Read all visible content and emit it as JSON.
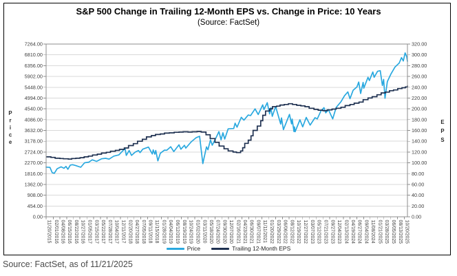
{
  "header": {
    "title": "S&P 500 Change in Trailing 12-Month EPS vs. Change in Price: 10 Years",
    "subtitle": "(Source: FactSet)"
  },
  "footer": {
    "source_caption": "Source: FactSet, as of 11/21/2025"
  },
  "colors": {
    "price_line": "#29A8DF",
    "eps_line": "#1E3050",
    "gridline": "#D9D9D9",
    "frame": "#8C8C8C",
    "tick_text": "#404040",
    "axis_title_text": "#262626"
  },
  "chart_data": {
    "type": "line",
    "title": "S&P 500 Change in Trailing 12-Month EPS vs. Change in Price: 10 Years",
    "subtitle": "(Source: FactSet)",
    "grid": "horizontal",
    "legend_position": "bottom",
    "y_left": {
      "label": "Price",
      "min": 0,
      "max": 7264,
      "ticks": [
        "7264.00",
        "6810.00",
        "6356.00",
        "5902.00",
        "5448.00",
        "4994.00",
        "4540.00",
        "4086.00",
        "3632.00",
        "3178.00",
        "2724.00",
        "2270.00",
        "1816.00",
        "1362.00",
        "908.00",
        "454.00",
        "0.00"
      ]
    },
    "y_right": {
      "label": "EPS",
      "min": 0,
      "max": 320,
      "ticks": [
        "320.00",
        "300.00",
        "280.00",
        "260.00",
        "240.00",
        "220.00",
        "200.00",
        "180.00",
        "160.00",
        "140.00",
        "120.00",
        "100.00",
        "80.00",
        "60.00",
        "40.00",
        "20.00",
        "0.00"
      ]
    },
    "x_ticks": [
      "11/20/2015",
      "02/01/2016",
      "04/08/2016",
      "06/15/2016",
      "08/22/2016",
      "10/27/2016",
      "01/05/2017",
      "03/15/2017",
      "05/22/2017",
      "07/28/2017",
      "10/04/2017",
      "12/11/2017",
      "02/20/2018",
      "04/27/2018",
      "07/05/2018",
      "09/11/2018",
      "11/15/2018",
      "01/28/2019",
      "04/04/2019",
      "06/12/2019",
      "08/19/2019",
      "10/24/2019",
      "01/02/2020",
      "03/11/2020",
      "05/18/2020",
      "07/24/2020",
      "09/30/2020",
      "12/07/2020",
      "02/16/2021",
      "04/23/2021",
      "06/30/2021",
      "09/07/2021",
      "11/11/2021",
      "01/20/2022",
      "03/29/2022",
      "06/06/2022",
      "08/12/2022",
      "10/19/2022",
      "12/27/2022",
      "03/07/2023",
      "05/12/2023",
      "07/21/2023",
      "09/27/2023",
      "12/04/2023",
      "02/13/2024",
      "04/19/2024",
      "06/27/2024",
      "09/04/2024",
      "11/08/2024",
      "01/21/2025",
      "03/28/2025",
      "06/05/2025",
      "08/13/2025",
      "10/20/2025"
    ],
    "series": [
      {
        "name": "Price",
        "axis": "left",
        "style": "line",
        "color": "#29A8DF",
        "points": [
          [
            "2015-11-20",
            2089
          ],
          [
            "2015-12-29",
            2078
          ],
          [
            "2016-01-20",
            1859
          ],
          [
            "2016-02-11",
            1829
          ],
          [
            "2016-03-11",
            2022
          ],
          [
            "2016-04-20",
            2102
          ],
          [
            "2016-05-19",
            2040
          ],
          [
            "2016-06-08",
            2119
          ],
          [
            "2016-06-27",
            2001
          ],
          [
            "2016-07-22",
            2175
          ],
          [
            "2016-08-15",
            2190
          ],
          [
            "2016-09-12",
            2159
          ],
          [
            "2016-11-04",
            2085
          ],
          [
            "2016-12-13",
            2271
          ],
          [
            "2017-01-25",
            2298
          ],
          [
            "2017-03-01",
            2396
          ],
          [
            "2017-04-13",
            2329
          ],
          [
            "2017-06-02",
            2439
          ],
          [
            "2017-07-14",
            2459
          ],
          [
            "2017-08-18",
            2426
          ],
          [
            "2017-10-05",
            2552
          ],
          [
            "2017-11-24",
            2602
          ],
          [
            "2018-01-26",
            2873
          ],
          [
            "2018-02-08",
            2581
          ],
          [
            "2018-03-09",
            2787
          ],
          [
            "2018-04-02",
            2582
          ],
          [
            "2018-05-10",
            2723
          ],
          [
            "2018-06-12",
            2786
          ],
          [
            "2018-06-27",
            2700
          ],
          [
            "2018-07-25",
            2846
          ],
          [
            "2018-09-20",
            2931
          ],
          [
            "2018-10-29",
            2641
          ],
          [
            "2018-11-07",
            2814
          ],
          [
            "2018-11-23",
            2633
          ],
          [
            "2018-12-03",
            2790
          ],
          [
            "2018-12-24",
            2351
          ],
          [
            "2019-01-18",
            2671
          ],
          [
            "2019-03-01",
            2804
          ],
          [
            "2019-03-25",
            2798
          ],
          [
            "2019-05-03",
            2946
          ],
          [
            "2019-06-03",
            2744
          ],
          [
            "2019-07-26",
            3026
          ],
          [
            "2019-08-14",
            2841
          ],
          [
            "2019-09-19",
            3007
          ],
          [
            "2019-10-02",
            2888
          ],
          [
            "2019-11-27",
            3154
          ],
          [
            "2020-01-17",
            3330
          ],
          [
            "2020-02-19",
            3386
          ],
          [
            "2020-03-23",
            2237
          ],
          [
            "2020-04-29",
            2940
          ],
          [
            "2020-05-13",
            2820
          ],
          [
            "2020-06-08",
            3232
          ],
          [
            "2020-06-26",
            3009
          ],
          [
            "2020-08-06",
            3349
          ],
          [
            "2020-09-02",
            3581
          ],
          [
            "2020-09-23",
            3237
          ],
          [
            "2020-10-12",
            3534
          ],
          [
            "2020-10-30",
            3270
          ],
          [
            "2020-12-04",
            3699
          ],
          [
            "2021-01-29",
            3714
          ],
          [
            "2021-02-12",
            3935
          ],
          [
            "2021-03-04",
            3768
          ],
          [
            "2021-04-16",
            4185
          ],
          [
            "2021-05-12",
            4063
          ],
          [
            "2021-06-25",
            4281
          ],
          [
            "2021-07-19",
            4258
          ],
          [
            "2021-09-02",
            4537
          ],
          [
            "2021-10-04",
            4300
          ],
          [
            "2021-11-18",
            4705
          ],
          [
            "2021-12-01",
            4513
          ],
          [
            "2022-01-03",
            4797
          ],
          [
            "2022-01-27",
            4327
          ],
          [
            "2022-02-09",
            4587
          ],
          [
            "2022-02-23",
            4225
          ],
          [
            "2022-03-29",
            4632
          ],
          [
            "2022-05-19",
            3901
          ],
          [
            "2022-05-27",
            4158
          ],
          [
            "2022-06-16",
            3667
          ],
          [
            "2022-08-16",
            4305
          ],
          [
            "2022-09-06",
            3908
          ],
          [
            "2022-09-12",
            4110
          ],
          [
            "2022-09-30",
            3586
          ],
          [
            "2022-10-05",
            3783
          ],
          [
            "2022-10-12",
            3577
          ],
          [
            "2022-11-30",
            4080
          ],
          [
            "2022-12-28",
            3783
          ],
          [
            "2023-02-02",
            4180
          ],
          [
            "2023-03-13",
            3856
          ],
          [
            "2023-05-01",
            4168
          ],
          [
            "2023-05-24",
            4115
          ],
          [
            "2023-06-30",
            4450
          ],
          [
            "2023-07-31",
            4589
          ],
          [
            "2023-08-18",
            4370
          ],
          [
            "2023-09-14",
            4505
          ],
          [
            "2023-10-27",
            4117
          ],
          [
            "2023-12-01",
            4595
          ],
          [
            "2024-01-19",
            4840
          ],
          [
            "2024-02-23",
            5089
          ],
          [
            "2024-03-28",
            5254
          ],
          [
            "2024-04-19",
            4967
          ],
          [
            "2024-05-21",
            5321
          ],
          [
            "2024-06-28",
            5460
          ],
          [
            "2024-07-16",
            5667
          ],
          [
            "2024-08-05",
            5186
          ],
          [
            "2024-08-30",
            5648
          ],
          [
            "2024-09-06",
            5408
          ],
          [
            "2024-10-18",
            5865
          ],
          [
            "2024-11-01",
            5729
          ],
          [
            "2024-12-06",
            6090
          ],
          [
            "2024-12-19",
            5867
          ],
          [
            "2025-01-23",
            6118
          ],
          [
            "2025-02-19",
            6144
          ],
          [
            "2025-03-13",
            5521
          ],
          [
            "2025-03-25",
            5777
          ],
          [
            "2025-04-08",
            4983
          ],
          [
            "2025-05-02",
            5687
          ],
          [
            "2025-06-06",
            6000
          ],
          [
            "2025-07-18",
            6297
          ],
          [
            "2025-08-29",
            6460
          ],
          [
            "2025-09-22",
            6694
          ],
          [
            "2025-10-10",
            6553
          ],
          [
            "2025-10-28",
            6891
          ],
          [
            "2025-11-13",
            6737
          ],
          [
            "2025-11-21",
            6538
          ]
        ]
      },
      {
        "name": "Trailing 12-Month EPS",
        "axis": "right",
        "style": "step",
        "color": "#1E3050",
        "points": [
          [
            "2015-11-20",
            111
          ],
          [
            "2016-01-08",
            110
          ],
          [
            "2016-02-19",
            108.5
          ],
          [
            "2016-04-08",
            108
          ],
          [
            "2016-05-13",
            107.5
          ],
          [
            "2016-07-01",
            107
          ],
          [
            "2016-08-05",
            108
          ],
          [
            "2016-09-16",
            108.5
          ],
          [
            "2016-10-28",
            109.5
          ],
          [
            "2016-12-09",
            111
          ],
          [
            "2017-01-20",
            112.5
          ],
          [
            "2017-03-03",
            114.5
          ],
          [
            "2017-04-21",
            116
          ],
          [
            "2017-06-02",
            118
          ],
          [
            "2017-07-21",
            119.5
          ],
          [
            "2017-09-01",
            121.5
          ],
          [
            "2017-10-20",
            123
          ],
          [
            "2017-12-01",
            125
          ],
          [
            "2018-01-19",
            127.5
          ],
          [
            "2018-03-02",
            132
          ],
          [
            "2018-04-20",
            135.5
          ],
          [
            "2018-06-01",
            140
          ],
          [
            "2018-07-20",
            143.5
          ],
          [
            "2018-08-31",
            148
          ],
          [
            "2018-10-19",
            150.5
          ],
          [
            "2018-11-30",
            152.5
          ],
          [
            "2019-01-18",
            153.5
          ],
          [
            "2019-03-01",
            155
          ],
          [
            "2019-04-19",
            155.5
          ],
          [
            "2019-06-07",
            156.5
          ],
          [
            "2019-07-26",
            157
          ],
          [
            "2019-09-06",
            157.5
          ],
          [
            "2019-10-25",
            157
          ],
          [
            "2019-12-06",
            157.5
          ],
          [
            "2020-01-24",
            158
          ],
          [
            "2020-03-06",
            157
          ],
          [
            "2020-04-24",
            152
          ],
          [
            "2020-06-05",
            145
          ],
          [
            "2020-07-24",
            138
          ],
          [
            "2020-09-04",
            131
          ],
          [
            "2020-10-23",
            126
          ],
          [
            "2020-12-04",
            122
          ],
          [
            "2021-01-22",
            120
          ],
          [
            "2021-02-26",
            119
          ],
          [
            "2021-04-09",
            122
          ],
          [
            "2021-04-30",
            128
          ],
          [
            "2021-05-21",
            136
          ],
          [
            "2021-06-25",
            142
          ],
          [
            "2021-07-23",
            150
          ],
          [
            "2021-08-13",
            160
          ],
          [
            "2021-09-24",
            168
          ],
          [
            "2021-10-29",
            178
          ],
          [
            "2021-11-19",
            188
          ],
          [
            "2021-12-17",
            196
          ],
          [
            "2022-01-28",
            200
          ],
          [
            "2022-02-25",
            204
          ],
          [
            "2022-04-08",
            205
          ],
          [
            "2022-05-13",
            207
          ],
          [
            "2022-06-24",
            208
          ],
          [
            "2022-08-05",
            209.5
          ],
          [
            "2022-09-16",
            208
          ],
          [
            "2022-10-28",
            206.5
          ],
          [
            "2022-12-09",
            205.5
          ],
          [
            "2023-01-20",
            204
          ],
          [
            "2023-03-03",
            201
          ],
          [
            "2023-04-21",
            199
          ],
          [
            "2023-06-02",
            197.5
          ],
          [
            "2023-07-21",
            196.5
          ],
          [
            "2023-09-01",
            198
          ],
          [
            "2023-10-20",
            199.5
          ],
          [
            "2023-12-01",
            201
          ],
          [
            "2024-01-19",
            203
          ],
          [
            "2024-03-01",
            206
          ],
          [
            "2024-04-19",
            208
          ],
          [
            "2024-05-31",
            210.5
          ],
          [
            "2024-07-19",
            212.5
          ],
          [
            "2024-08-30",
            217
          ],
          [
            "2024-10-18",
            220
          ],
          [
            "2024-11-29",
            222.5
          ],
          [
            "2025-01-17",
            226
          ],
          [
            "2025-02-28",
            229.5
          ],
          [
            "2025-04-11",
            231
          ],
          [
            "2025-05-23",
            233.5
          ],
          [
            "2025-07-03",
            235
          ],
          [
            "2025-08-15",
            237.5
          ],
          [
            "2025-09-26",
            239
          ],
          [
            "2025-10-31",
            240.5
          ],
          [
            "2025-11-21",
            243
          ]
        ]
      }
    ]
  }
}
